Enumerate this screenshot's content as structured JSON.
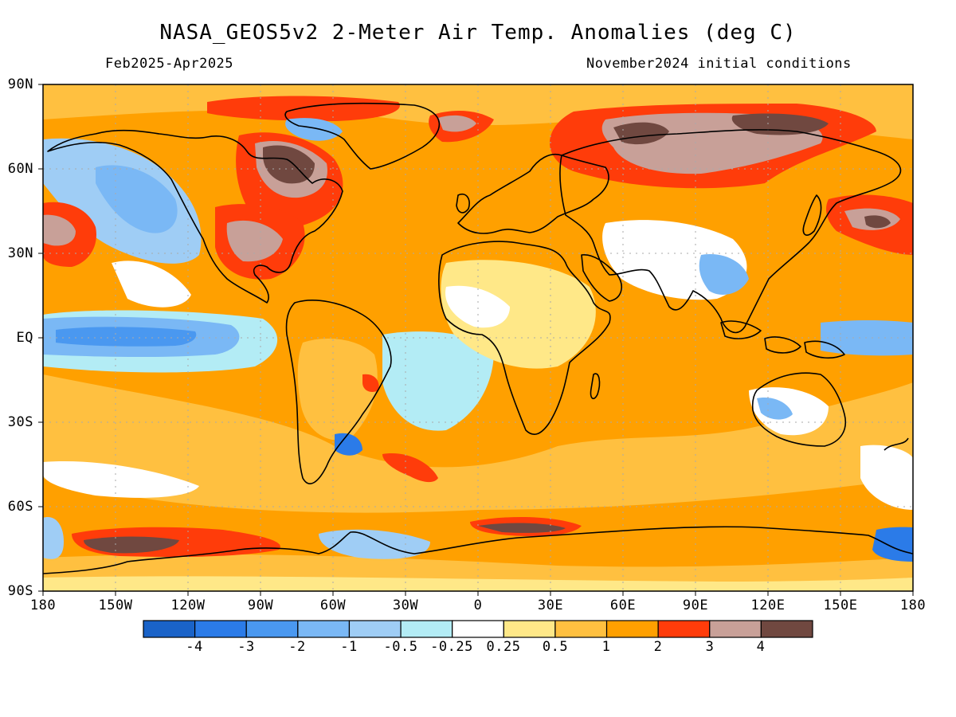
{
  "title": "NASA_GEOS5v2 2-Meter Air Temp. Anomalies (deg C)",
  "period": "Feb2025-Apr2025",
  "initial_conditions": "November2024 initial conditions",
  "lat_labels": [
    "90N",
    "60N",
    "30N",
    "EQ",
    "30S",
    "60S",
    "90S"
  ],
  "lon_labels": [
    "180",
    "150W",
    "120W",
    "90W",
    "60W",
    "30W",
    "0",
    "30E",
    "60E",
    "90E",
    "120E",
    "150E",
    "180"
  ],
  "colorbar": {
    "labels": [
      "-4",
      "-3",
      "-2",
      "-1",
      "-0.5",
      "-0.25",
      "0.25",
      "0.5",
      "1",
      "2",
      "3",
      "4"
    ],
    "colors": [
      "#1a63c8",
      "#2b7be8",
      "#4a98f0",
      "#7ab8f5",
      "#9fcdf5",
      "#b3ecf5",
      "#ffffff",
      "#ffe888",
      "#ffc040",
      "#ffa000",
      "#ff3c0a",
      "#c8a098",
      "#704840"
    ]
  },
  "colors": {
    "ocean_base": "#ffa000",
    "coastline": "#000000"
  }
}
